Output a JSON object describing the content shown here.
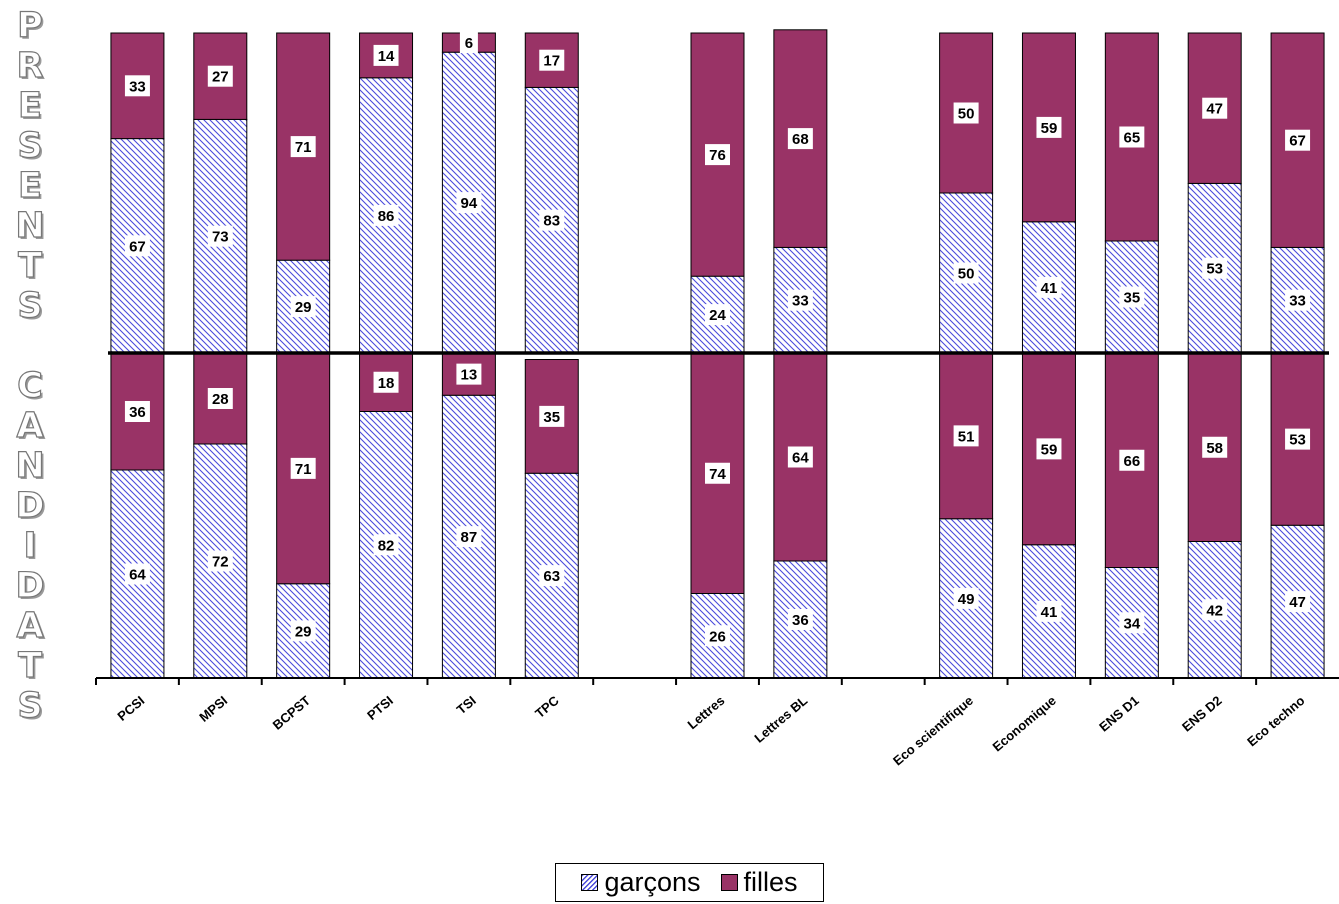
{
  "chart_data": {
    "type": "bar",
    "stacked": true,
    "percent": true,
    "panels": [
      {
        "name": "PRESENTS",
        "series": [
          {
            "name": "garçons",
            "color": "#6666cc",
            "pattern": "diagonal-hatch",
            "values": [
              67,
              73,
              29,
              86,
              94,
              83,
              null,
              24,
              33,
              null,
              50,
              41,
              35,
              53,
              33
            ]
          },
          {
            "name": "filles",
            "color": "#993366",
            "values": [
              33,
              27,
              71,
              14,
              6,
              17,
              null,
              76,
              68,
              null,
              50,
              59,
              65,
              47,
              67
            ]
          }
        ]
      },
      {
        "name": "CANDIDATS",
        "series": [
          {
            "name": "garçons",
            "color": "#6666cc",
            "pattern": "diagonal-hatch",
            "values": [
              64,
              72,
              29,
              82,
              87,
              63,
              null,
              26,
              36,
              null,
              49,
              41,
              34,
              42,
              47
            ]
          },
          {
            "name": "filles",
            "color": "#993366",
            "values": [
              36,
              28,
              71,
              18,
              13,
              35,
              null,
              74,
              64,
              null,
              51,
              59,
              66,
              58,
              53
            ]
          }
        ]
      }
    ],
    "categories": [
      "PCSI",
      "MPSI",
      "BCPST",
      "PTSI",
      "TSI",
      "TPC",
      "",
      "Lettres",
      "Lettres BL",
      "",
      "Eco scientifique",
      "Economique",
      "ENS D1",
      "ENS D2",
      "Eco techno"
    ],
    "legend": {
      "position": "bottom",
      "items": [
        "garçons",
        "filles"
      ]
    },
    "grid": false,
    "ylim": [
      0,
      100
    ]
  },
  "side_titles": {
    "present": "PRESENTS",
    "candidats": "CANDIDATS"
  },
  "legend_labels": {
    "garcons": "garçons",
    "filles": "filles"
  }
}
